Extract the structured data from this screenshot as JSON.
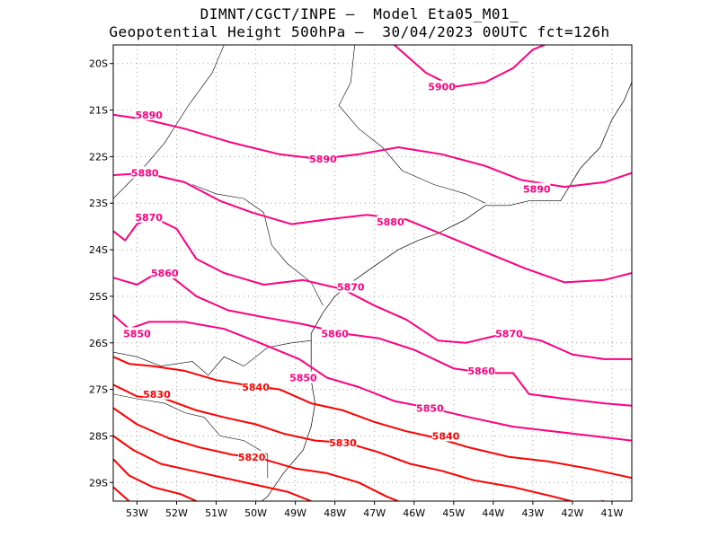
{
  "title": {
    "line1": "DIMNT/CGCT/INPE –  Model Eta05_M01_",
    "line2": "Geopotential Height 500hPa –  30/04/2023 00UTC fct=126h"
  },
  "colors": {
    "contour_high": "#ff0080",
    "contour_low": "#ff0000",
    "coast": "#000000",
    "grid": "#a0a0a0"
  },
  "map": {
    "lon_range": [
      -53.6,
      -40.5
    ],
    "lat_range": [
      -29.4,
      -19.6
    ],
    "x_ticks": [
      "53W",
      "52W",
      "51W",
      "50W",
      "49W",
      "48W",
      "47W",
      "46W",
      "45W",
      "44W",
      "43W",
      "42W",
      "41W"
    ],
    "y_ticks": [
      "20S",
      "21S",
      "22S",
      "23S",
      "24S",
      "25S",
      "26S",
      "27S",
      "28S",
      "29S"
    ]
  },
  "contours": [
    {
      "value": "5900",
      "points": [
        [
          -46.5,
          -19.6
        ],
        [
          -45.7,
          -20.2
        ],
        [
          -45.0,
          -20.5
        ],
        [
          -44.2,
          -20.4
        ],
        [
          -43.5,
          -20.1
        ],
        [
          -43.0,
          -19.7
        ],
        [
          -42.7,
          -19.6
        ]
      ]
    },
    {
      "value": "5890",
      "points": [
        [
          -53.6,
          -21.1
        ],
        [
          -52.8,
          -21.2
        ],
        [
          -51.8,
          -21.4
        ],
        [
          -50.6,
          -21.7
        ],
        [
          -49.4,
          -21.95
        ],
        [
          -48.4,
          -22.05
        ],
        [
          -47.4,
          -21.95
        ],
        [
          -46.4,
          -21.8
        ],
        [
          -45.3,
          -21.95
        ],
        [
          -44.2,
          -22.2
        ],
        [
          -43.3,
          -22.5
        ],
        [
          -42.2,
          -22.65
        ],
        [
          -41.2,
          -22.55
        ],
        [
          -40.5,
          -22.35
        ]
      ]
    },
    {
      "value": "5880",
      "points": [
        [
          -53.6,
          -22.4
        ],
        [
          -52.8,
          -22.35
        ],
        [
          -51.8,
          -22.55
        ],
        [
          -50.9,
          -22.95
        ],
        [
          -50.1,
          -23.2
        ],
        [
          -49.1,
          -23.45
        ],
        [
          -48.2,
          -23.35
        ],
        [
          -47.2,
          -23.25
        ],
        [
          -46.2,
          -23.35
        ],
        [
          -45.2,
          -23.7
        ],
        [
          -44.2,
          -24.05
        ],
        [
          -43.2,
          -24.4
        ],
        [
          -42.2,
          -24.7
        ],
        [
          -41.2,
          -24.65
        ],
        [
          -40.5,
          -24.5
        ]
      ]
    },
    {
      "value": "5870",
      "points": [
        [
          -53.6,
          -23.6
        ],
        [
          -53.3,
          -23.8
        ],
        [
          -53.0,
          -23.45
        ],
        [
          -52.6,
          -23.3
        ],
        [
          -52.0,
          -23.55
        ],
        [
          -51.5,
          -24.2
        ],
        [
          -50.8,
          -24.5
        ],
        [
          -49.8,
          -24.75
        ],
        [
          -48.8,
          -24.65
        ],
        [
          -47.8,
          -24.85
        ],
        [
          -47.0,
          -25.2
        ],
        [
          -46.2,
          -25.5
        ],
        [
          -45.4,
          -25.95
        ],
        [
          -44.7,
          -26.0
        ],
        [
          -43.7,
          -25.8
        ],
        [
          -42.8,
          -25.95
        ],
        [
          -42.0,
          -26.25
        ],
        [
          -41.2,
          -26.35
        ],
        [
          -40.5,
          -26.35
        ]
      ]
    },
    {
      "value": "5860",
      "points": [
        [
          -53.6,
          -24.6
        ],
        [
          -53.0,
          -24.75
        ],
        [
          -52.6,
          -24.55
        ],
        [
          -52.1,
          -24.6
        ],
        [
          -51.5,
          -25.0
        ],
        [
          -50.7,
          -25.3
        ],
        [
          -49.8,
          -25.45
        ],
        [
          -48.8,
          -25.6
        ],
        [
          -47.8,
          -25.8
        ],
        [
          -46.9,
          -25.9
        ],
        [
          -46.0,
          -26.15
        ],
        [
          -45.0,
          -26.55
        ],
        [
          -44.2,
          -26.65
        ],
        [
          -43.5,
          -26.65
        ],
        [
          -43.1,
          -27.1
        ],
        [
          -42.2,
          -27.2
        ],
        [
          -41.2,
          -27.3
        ],
        [
          -40.5,
          -27.35
        ]
      ]
    },
    {
      "value": "5850",
      "points": [
        [
          -53.6,
          -25.4
        ],
        [
          -53.2,
          -25.7
        ],
        [
          -52.7,
          -25.55
        ],
        [
          -51.8,
          -25.55
        ],
        [
          -50.8,
          -25.7
        ],
        [
          -49.9,
          -26.0
        ],
        [
          -48.9,
          -26.35
        ],
        [
          -48.2,
          -26.75
        ],
        [
          -47.4,
          -26.95
        ],
        [
          -46.5,
          -27.25
        ],
        [
          -45.6,
          -27.4
        ],
        [
          -44.6,
          -27.6
        ],
        [
          -43.5,
          -27.8
        ],
        [
          -42.5,
          -27.9
        ],
        [
          -41.5,
          -28.0
        ],
        [
          -40.5,
          -28.1
        ]
      ]
    },
    {
      "value": "5840",
      "points": [
        [
          -53.6,
          -26.3
        ],
        [
          -53.2,
          -26.45
        ],
        [
          -52.6,
          -26.5
        ],
        [
          -51.8,
          -26.6
        ],
        [
          -51.0,
          -26.8
        ],
        [
          -50.3,
          -26.9
        ],
        [
          -49.4,
          -27.0
        ],
        [
          -48.6,
          -27.3
        ],
        [
          -47.8,
          -27.45
        ],
        [
          -47.0,
          -27.7
        ],
        [
          -46.2,
          -27.9
        ],
        [
          -45.4,
          -28.05
        ],
        [
          -44.6,
          -28.25
        ],
        [
          -43.6,
          -28.45
        ],
        [
          -42.6,
          -28.55
        ],
        [
          -41.6,
          -28.7
        ],
        [
          -40.5,
          -28.9
        ]
      ]
    },
    {
      "value": "5830",
      "points": [
        [
          -53.6,
          -26.9
        ],
        [
          -53.0,
          -27.15
        ],
        [
          -52.3,
          -27.2
        ],
        [
          -51.5,
          -27.45
        ],
        [
          -50.8,
          -27.6
        ],
        [
          -50.0,
          -27.75
        ],
        [
          -49.3,
          -27.95
        ],
        [
          -48.5,
          -28.1
        ],
        [
          -47.7,
          -28.15
        ],
        [
          -46.9,
          -28.35
        ],
        [
          -46.1,
          -28.6
        ],
        [
          -45.3,
          -28.75
        ],
        [
          -44.5,
          -28.95
        ],
        [
          -43.5,
          -29.1
        ],
        [
          -42.5,
          -29.3
        ],
        [
          -41.8,
          -29.45
        ],
        [
          -41.2,
          -29.4
        ]
      ]
    },
    {
      "value": "5820",
      "points": [
        [
          -53.6,
          -27.4
        ],
        [
          -53.0,
          -27.75
        ],
        [
          -52.2,
          -28.05
        ],
        [
          -51.4,
          -28.25
        ],
        [
          -50.6,
          -28.4
        ],
        [
          -49.8,
          -28.5
        ],
        [
          -49.0,
          -28.7
        ],
        [
          -48.2,
          -28.8
        ],
        [
          -47.4,
          -29.0
        ],
        [
          -46.7,
          -29.3
        ],
        [
          -46.4,
          -29.4
        ]
      ]
    },
    {
      "value": "",
      "points": [
        [
          -53.6,
          -28.0
        ],
        [
          -53.1,
          -28.3
        ],
        [
          -52.4,
          -28.6
        ],
        [
          -51.6,
          -28.75
        ],
        [
          -50.8,
          -28.9
        ],
        [
          -50.0,
          -29.05
        ],
        [
          -49.2,
          -29.2
        ],
        [
          -48.6,
          -29.4
        ]
      ]
    },
    {
      "value": "",
      "points": [
        [
          -53.6,
          -28.5
        ],
        [
          -53.2,
          -28.85
        ],
        [
          -52.6,
          -29.1
        ],
        [
          -51.9,
          -29.25
        ],
        [
          -51.5,
          -29.4
        ]
      ]
    },
    {
      "value": "",
      "points": [
        [
          -53.6,
          -29.1
        ],
        [
          -53.2,
          -29.4
        ]
      ]
    }
  ],
  "contour_labels": [
    {
      "text": "5900",
      "lon": -45.3,
      "lat": -20.5
    },
    {
      "text": "5890",
      "lon": -52.7,
      "lat": -21.1
    },
    {
      "text": "5890",
      "lon": -48.3,
      "lat": -22.05
    },
    {
      "text": "5890",
      "lon": -42.9,
      "lat": -22.7
    },
    {
      "text": "5880",
      "lon": -52.8,
      "lat": -22.35
    },
    {
      "text": "5880",
      "lon": -46.6,
      "lat": -23.4
    },
    {
      "text": "5870",
      "lon": -52.7,
      "lat": -23.3
    },
    {
      "text": "5870",
      "lon": -47.6,
      "lat": -24.8
    },
    {
      "text": "5870",
      "lon": -43.6,
      "lat": -25.8
    },
    {
      "text": "5860",
      "lon": -52.3,
      "lat": -24.5
    },
    {
      "text": "5860",
      "lon": -48.0,
      "lat": -25.8
    },
    {
      "text": "5860",
      "lon": -44.3,
      "lat": -26.6
    },
    {
      "text": "5850",
      "lon": -53.0,
      "lat": -25.8
    },
    {
      "text": "5850",
      "lon": -48.8,
      "lat": -26.75
    },
    {
      "text": "5850",
      "lon": -45.6,
      "lat": -27.4
    },
    {
      "text": "5840",
      "lon": -50.0,
      "lat": -26.95
    },
    {
      "text": "5840",
      "lon": -45.2,
      "lat": -28.0
    },
    {
      "text": "5830",
      "lon": -52.5,
      "lat": -27.1
    },
    {
      "text": "5830",
      "lon": -47.8,
      "lat": -28.15
    },
    {
      "text": "5820",
      "lon": -50.1,
      "lat": -28.45
    }
  ],
  "coastline": [
    [
      -40.5,
      -20.4
    ],
    [
      -40.7,
      -20.8
    ],
    [
      -41.0,
      -21.2
    ],
    [
      -41.3,
      -21.8
    ],
    [
      -41.8,
      -22.25
    ],
    [
      -42.3,
      -22.95
    ],
    [
      -43.1,
      -22.95
    ],
    [
      -43.6,
      -23.05
    ],
    [
      -44.2,
      -23.05
    ],
    [
      -44.7,
      -23.35
    ],
    [
      -45.4,
      -23.65
    ],
    [
      -45.9,
      -23.8
    ],
    [
      -46.4,
      -24.0
    ],
    [
      -47.0,
      -24.35
    ],
    [
      -47.5,
      -24.65
    ],
    [
      -48.0,
      -25.0
    ],
    [
      -48.3,
      -25.35
    ],
    [
      -48.6,
      -25.8
    ],
    [
      -48.6,
      -26.3
    ],
    [
      -48.6,
      -26.8
    ],
    [
      -48.5,
      -27.3
    ],
    [
      -48.6,
      -27.8
    ],
    [
      -48.8,
      -28.3
    ],
    [
      -49.3,
      -28.8
    ],
    [
      -49.7,
      -29.3
    ],
    [
      -49.85,
      -29.4
    ]
  ],
  "borders": [
    [
      [
        -50.8,
        -19.6
      ],
      [
        -51.1,
        -20.2
      ],
      [
        -51.7,
        -20.9
      ],
      [
        -52.3,
        -21.7
      ],
      [
        -52.9,
        -22.3
      ],
      [
        -53.6,
        -22.9
      ]
    ],
    [
      [
        -47.5,
        -19.6
      ],
      [
        -47.6,
        -20.4
      ],
      [
        -47.9,
        -20.9
      ],
      [
        -47.4,
        -21.4
      ],
      [
        -46.8,
        -21.8
      ],
      [
        -46.3,
        -22.3
      ],
      [
        -45.5,
        -22.6
      ],
      [
        -44.7,
        -22.8
      ],
      [
        -44.2,
        -23.0
      ]
    ],
    [
      [
        -51.6,
        -22.6
      ],
      [
        -51.0,
        -22.8
      ],
      [
        -50.3,
        -22.9
      ],
      [
        -49.8,
        -23.2
      ],
      [
        -49.6,
        -23.9
      ],
      [
        -49.2,
        -24.3
      ],
      [
        -48.6,
        -24.7
      ],
      [
        -48.3,
        -25.2
      ]
    ],
    [
      [
        -53.6,
        -26.2
      ],
      [
        -53.0,
        -26.3
      ],
      [
        -52.4,
        -26.5
      ],
      [
        -51.6,
        -26.4
      ],
      [
        -51.2,
        -26.7
      ],
      [
        -50.8,
        -26.3
      ],
      [
        -50.3,
        -26.5
      ],
      [
        -49.7,
        -26.1
      ],
      [
        -49.1,
        -26.0
      ],
      [
        -48.6,
        -25.95
      ]
    ],
    [
      [
        -53.6,
        -27.1
      ],
      [
        -53.0,
        -27.2
      ],
      [
        -52.3,
        -27.3
      ],
      [
        -51.8,
        -27.5
      ],
      [
        -51.3,
        -27.6
      ],
      [
        -50.9,
        -28.0
      ],
      [
        -50.3,
        -28.1
      ],
      [
        -49.7,
        -28.4
      ],
      [
        -49.7,
        -28.9
      ]
    ],
    [
      [
        -53.6,
        -24.6
      ],
      [
        -53.9,
        -24.6
      ]
    ]
  ]
}
